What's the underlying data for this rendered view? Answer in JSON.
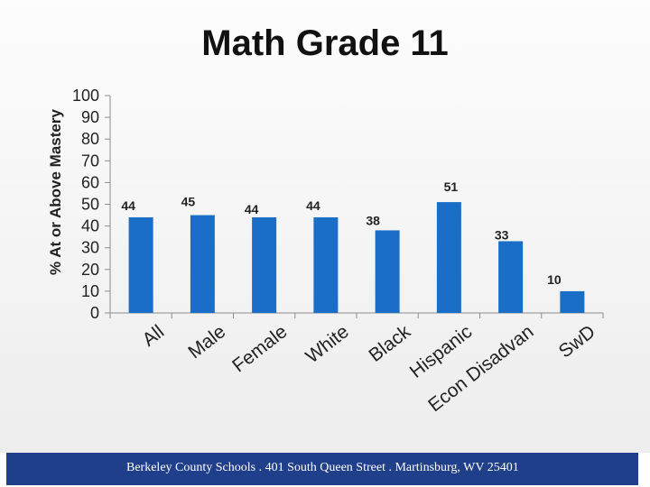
{
  "chart_data": {
    "type": "bar",
    "title": "Math Grade 11",
    "ylabel": "% At or Above Mastery",
    "xlabel": "",
    "categories": [
      "All",
      "Male",
      "Female",
      "White",
      "Black",
      "Hispanic",
      "Econ Disadvan",
      "SwD"
    ],
    "values": [
      44,
      45,
      44,
      44,
      38,
      51,
      33,
      10
    ],
    "data_labels": [
      "44",
      "45",
      "44",
      "44",
      "38",
      "51",
      "33",
      "10"
    ],
    "yticks": [
      "0",
      "10",
      "20",
      "30",
      "40",
      "50",
      "60",
      "70",
      "80",
      "90",
      "100"
    ],
    "ylim": [
      0,
      100
    ],
    "grid": false,
    "bar_color": "#1a6ec7"
  },
  "footer": {
    "text": "Berkeley County Schools . 401 South Queen Street . Martinsburg, WV  25401"
  }
}
